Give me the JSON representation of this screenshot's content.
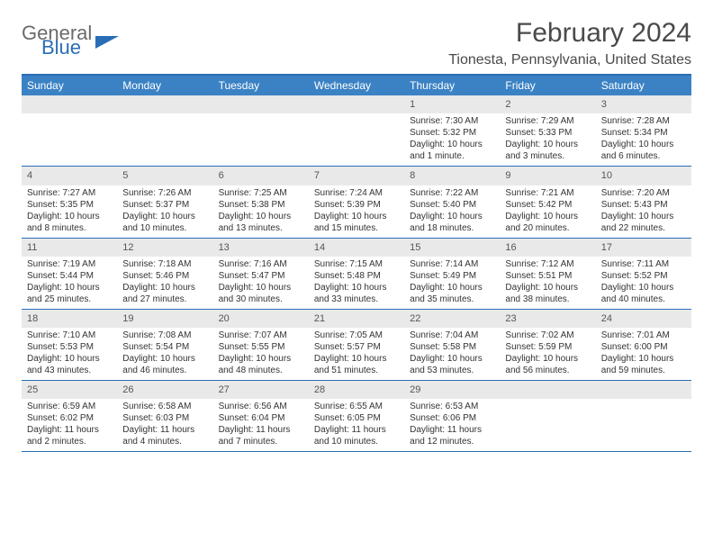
{
  "logo": {
    "general": "General",
    "blue": "Blue"
  },
  "title": "February 2024",
  "location": "Tionesta, Pennsylvania, United States",
  "colors": {
    "header_bar": "#3b82c4",
    "accent": "#2a6db5",
    "daynum_bg": "#e9e9e9",
    "text": "#333333",
    "title_text": "#4a4a4a"
  },
  "weekdays": [
    "Sunday",
    "Monday",
    "Tuesday",
    "Wednesday",
    "Thursday",
    "Friday",
    "Saturday"
  ],
  "weeks": [
    [
      null,
      null,
      null,
      null,
      {
        "n": "1",
        "sr": "Sunrise: 7:30 AM",
        "ss": "Sunset: 5:32 PM",
        "dl": "Daylight: 10 hours and 1 minute."
      },
      {
        "n": "2",
        "sr": "Sunrise: 7:29 AM",
        "ss": "Sunset: 5:33 PM",
        "dl": "Daylight: 10 hours and 3 minutes."
      },
      {
        "n": "3",
        "sr": "Sunrise: 7:28 AM",
        "ss": "Sunset: 5:34 PM",
        "dl": "Daylight: 10 hours and 6 minutes."
      }
    ],
    [
      {
        "n": "4",
        "sr": "Sunrise: 7:27 AM",
        "ss": "Sunset: 5:35 PM",
        "dl": "Daylight: 10 hours and 8 minutes."
      },
      {
        "n": "5",
        "sr": "Sunrise: 7:26 AM",
        "ss": "Sunset: 5:37 PM",
        "dl": "Daylight: 10 hours and 10 minutes."
      },
      {
        "n": "6",
        "sr": "Sunrise: 7:25 AM",
        "ss": "Sunset: 5:38 PM",
        "dl": "Daylight: 10 hours and 13 minutes."
      },
      {
        "n": "7",
        "sr": "Sunrise: 7:24 AM",
        "ss": "Sunset: 5:39 PM",
        "dl": "Daylight: 10 hours and 15 minutes."
      },
      {
        "n": "8",
        "sr": "Sunrise: 7:22 AM",
        "ss": "Sunset: 5:40 PM",
        "dl": "Daylight: 10 hours and 18 minutes."
      },
      {
        "n": "9",
        "sr": "Sunrise: 7:21 AM",
        "ss": "Sunset: 5:42 PM",
        "dl": "Daylight: 10 hours and 20 minutes."
      },
      {
        "n": "10",
        "sr": "Sunrise: 7:20 AM",
        "ss": "Sunset: 5:43 PM",
        "dl": "Daylight: 10 hours and 22 minutes."
      }
    ],
    [
      {
        "n": "11",
        "sr": "Sunrise: 7:19 AM",
        "ss": "Sunset: 5:44 PM",
        "dl": "Daylight: 10 hours and 25 minutes."
      },
      {
        "n": "12",
        "sr": "Sunrise: 7:18 AM",
        "ss": "Sunset: 5:46 PM",
        "dl": "Daylight: 10 hours and 27 minutes."
      },
      {
        "n": "13",
        "sr": "Sunrise: 7:16 AM",
        "ss": "Sunset: 5:47 PM",
        "dl": "Daylight: 10 hours and 30 minutes."
      },
      {
        "n": "14",
        "sr": "Sunrise: 7:15 AM",
        "ss": "Sunset: 5:48 PM",
        "dl": "Daylight: 10 hours and 33 minutes."
      },
      {
        "n": "15",
        "sr": "Sunrise: 7:14 AM",
        "ss": "Sunset: 5:49 PM",
        "dl": "Daylight: 10 hours and 35 minutes."
      },
      {
        "n": "16",
        "sr": "Sunrise: 7:12 AM",
        "ss": "Sunset: 5:51 PM",
        "dl": "Daylight: 10 hours and 38 minutes."
      },
      {
        "n": "17",
        "sr": "Sunrise: 7:11 AM",
        "ss": "Sunset: 5:52 PM",
        "dl": "Daylight: 10 hours and 40 minutes."
      }
    ],
    [
      {
        "n": "18",
        "sr": "Sunrise: 7:10 AM",
        "ss": "Sunset: 5:53 PM",
        "dl": "Daylight: 10 hours and 43 minutes."
      },
      {
        "n": "19",
        "sr": "Sunrise: 7:08 AM",
        "ss": "Sunset: 5:54 PM",
        "dl": "Daylight: 10 hours and 46 minutes."
      },
      {
        "n": "20",
        "sr": "Sunrise: 7:07 AM",
        "ss": "Sunset: 5:55 PM",
        "dl": "Daylight: 10 hours and 48 minutes."
      },
      {
        "n": "21",
        "sr": "Sunrise: 7:05 AM",
        "ss": "Sunset: 5:57 PM",
        "dl": "Daylight: 10 hours and 51 minutes."
      },
      {
        "n": "22",
        "sr": "Sunrise: 7:04 AM",
        "ss": "Sunset: 5:58 PM",
        "dl": "Daylight: 10 hours and 53 minutes."
      },
      {
        "n": "23",
        "sr": "Sunrise: 7:02 AM",
        "ss": "Sunset: 5:59 PM",
        "dl": "Daylight: 10 hours and 56 minutes."
      },
      {
        "n": "24",
        "sr": "Sunrise: 7:01 AM",
        "ss": "Sunset: 6:00 PM",
        "dl": "Daylight: 10 hours and 59 minutes."
      }
    ],
    [
      {
        "n": "25",
        "sr": "Sunrise: 6:59 AM",
        "ss": "Sunset: 6:02 PM",
        "dl": "Daylight: 11 hours and 2 minutes."
      },
      {
        "n": "26",
        "sr": "Sunrise: 6:58 AM",
        "ss": "Sunset: 6:03 PM",
        "dl": "Daylight: 11 hours and 4 minutes."
      },
      {
        "n": "27",
        "sr": "Sunrise: 6:56 AM",
        "ss": "Sunset: 6:04 PM",
        "dl": "Daylight: 11 hours and 7 minutes."
      },
      {
        "n": "28",
        "sr": "Sunrise: 6:55 AM",
        "ss": "Sunset: 6:05 PM",
        "dl": "Daylight: 11 hours and 10 minutes."
      },
      {
        "n": "29",
        "sr": "Sunrise: 6:53 AM",
        "ss": "Sunset: 6:06 PM",
        "dl": "Daylight: 11 hours and 12 minutes."
      },
      null,
      null
    ]
  ]
}
